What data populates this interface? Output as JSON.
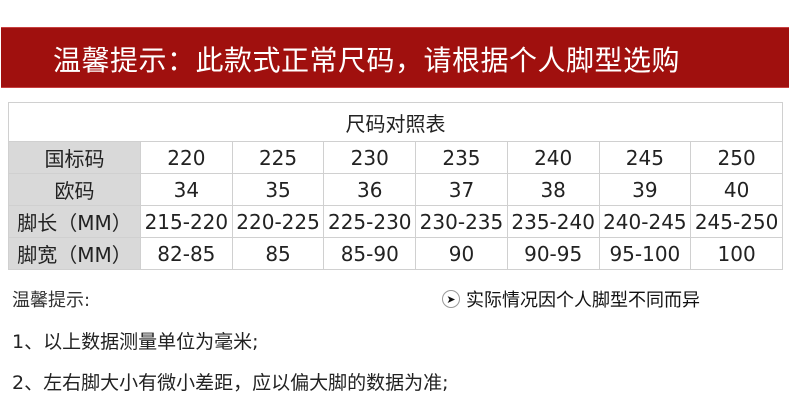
{
  "banner": {
    "text": "温馨提示：此款式正常尺码，请根据个人脚型选购"
  },
  "table": {
    "title": "尺码对照表",
    "rows": [
      {
        "label": "国标码",
        "values": [
          "220",
          "225",
          "230",
          "235",
          "240",
          "245",
          "250"
        ]
      },
      {
        "label": "欧码",
        "values": [
          "34",
          "35",
          "36",
          "37",
          "38",
          "39",
          "40"
        ]
      },
      {
        "label": "脚长（MM）",
        "values": [
          "215-220",
          "220-225",
          "225-230",
          "230-235",
          "235-240",
          "240-245",
          "245-250"
        ]
      },
      {
        "label": "脚宽（MM）",
        "values": [
          "82-85",
          "85",
          "85-90",
          "90",
          "90-95",
          "95-100",
          "100"
        ]
      }
    ]
  },
  "tips": {
    "heading": "温馨提示:",
    "note": "实际情况因个人脚型不同而异",
    "note_icon": "arrow-right-circle-icon",
    "lines": [
      "1、以上数据测量单位为毫米;",
      "2、左右脚大小有微小差距，应以偏大脚的数据为准;"
    ]
  }
}
